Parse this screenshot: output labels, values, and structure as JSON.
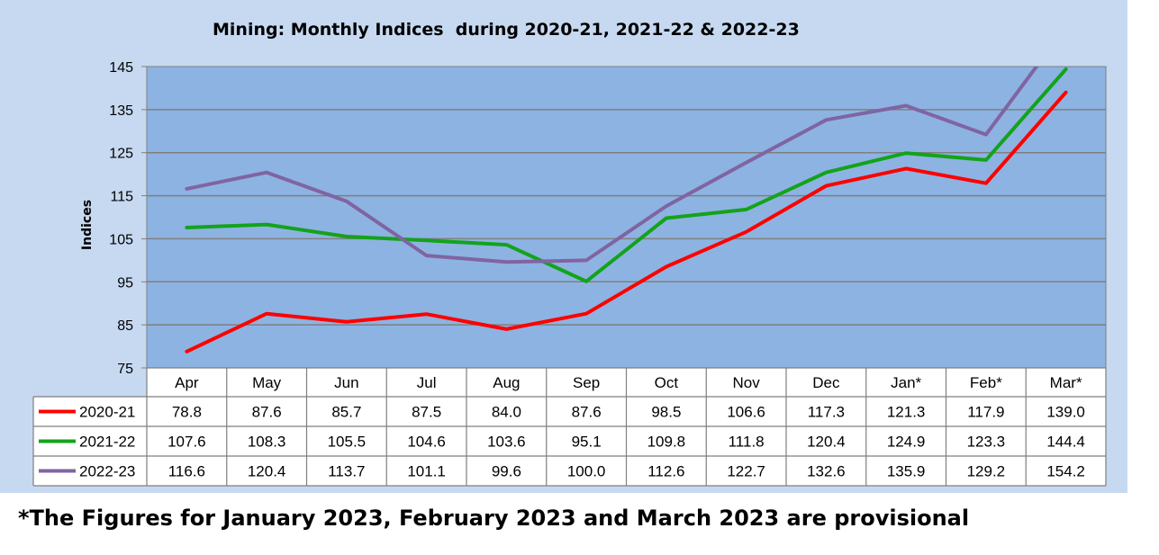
{
  "chart_data": {
    "type": "line",
    "title": "Mining: Monthly Indices  during 2020-21, 2021-22 & 2022-23",
    "xlabel": "",
    "ylabel": "Indices",
    "ylim": [
      75,
      145
    ],
    "yticks": [
      75,
      85,
      95,
      105,
      115,
      125,
      135,
      145
    ],
    "grid": true,
    "legend": "data-table-left",
    "categories": [
      "Apr",
      "May",
      "Jun",
      "Jul",
      "Aug",
      "Sep",
      "Oct",
      "Nov",
      "Dec",
      "Jan*",
      "Feb*",
      "Mar*"
    ],
    "series": [
      {
        "name": "2020-21",
        "color": "#ff0000",
        "values": [
          78.8,
          87.6,
          85.7,
          87.5,
          84.0,
          87.6,
          98.5,
          106.6,
          117.3,
          121.3,
          117.9,
          139.0
        ]
      },
      {
        "name": "2021-22",
        "color": "#13a31a",
        "values": [
          107.6,
          108.3,
          105.5,
          104.6,
          103.6,
          95.1,
          109.8,
          111.8,
          120.4,
          124.9,
          123.3,
          144.4
        ]
      },
      {
        "name": "2022-23",
        "color": "#8064a2",
        "values": [
          116.6,
          120.4,
          113.7,
          101.1,
          99.6,
          100.0,
          112.6,
          122.7,
          132.6,
          135.9,
          129.2,
          154.2
        ]
      }
    ],
    "table_values": [
      [
        "78.8",
        "87.6",
        "85.7",
        "87.5",
        "84.0",
        "87.6",
        "98.5",
        "106.6",
        "117.3",
        "121.3",
        "117.9",
        "139.0"
      ],
      [
        "107.6",
        "108.3",
        "105.5",
        "104.6",
        "103.6",
        "95.1",
        "109.8",
        "111.8",
        "120.4",
        "124.9",
        "123.3",
        "144.4"
      ],
      [
        "116.6",
        "120.4",
        "113.7",
        "101.1",
        "99.6",
        "100.0",
        "112.6",
        "122.7",
        "132.6",
        "135.9",
        "129.2",
        "154.2"
      ]
    ]
  },
  "colors": {
    "panel_bg": "#c6d9f1",
    "plot_bg": "#8db3e2",
    "table_bg": "#c6d9f1"
  },
  "footnote": "*The Figures for January 2023, February 2023 and March 2023 are provisional"
}
